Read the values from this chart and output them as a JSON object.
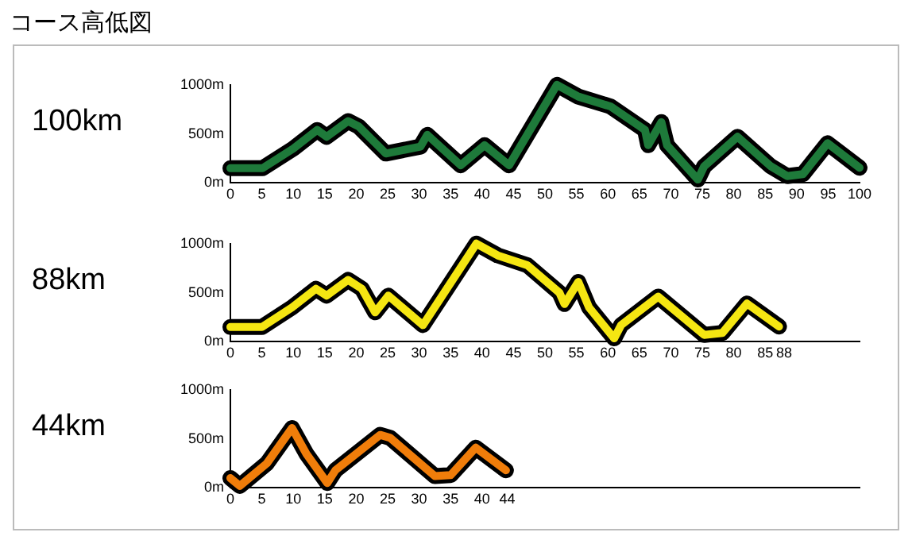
{
  "chart_data": [
    {
      "type": "line",
      "title": "コース高低図",
      "ylabel": "100km",
      "color": "#1e7a3a",
      "marker": "none",
      "grid": false,
      "x": [
        0,
        5.1,
        10,
        13.8,
        15.3,
        18.7,
        20.4,
        24.7,
        30.2,
        31.3,
        36.6,
        40.4,
        44.3,
        51.9,
        55.3,
        60.4,
        65.9,
        66.4,
        68.5,
        69.4,
        74.3,
        75.3,
        80.6,
        85.9,
        88.5,
        91,
        94.9,
        100
      ],
      "values": [
        150,
        150,
        350,
        540,
        470,
        630,
        575,
        300,
        370,
        490,
        180,
        385,
        180,
        1000,
        880,
        780,
        540,
        385,
        620,
        385,
        35,
        170,
        470,
        170,
        70,
        90,
        405,
        155
      ],
      "xlim": [
        0,
        100
      ],
      "xticks": [
        0,
        5,
        10,
        15,
        20,
        25,
        30,
        35,
        40,
        45,
        50,
        55,
        60,
        65,
        70,
        75,
        80,
        85,
        90,
        95,
        100
      ],
      "ylim": [
        0,
        1000
      ],
      "yticks": [
        {
          "value": 0,
          "label": "0m"
        },
        {
          "value": 500,
          "label": "500m"
        },
        {
          "value": 1000,
          "label": "1000m"
        }
      ]
    },
    {
      "type": "line",
      "ylabel": "88km",
      "color": "#f5e612",
      "marker": "none",
      "grid": false,
      "x": [
        0,
        5,
        9.8,
        13.6,
        15.3,
        18.7,
        20.9,
        23,
        25.1,
        30.6,
        39.1,
        42.5,
        47.2,
        52.3,
        53.1,
        55.3,
        57,
        61,
        62.1,
        68,
        75.3,
        78.2,
        82.1,
        87.2
      ],
      "values": [
        150,
        150,
        350,
        540,
        470,
        630,
        540,
        300,
        470,
        170,
        1000,
        880,
        780,
        500,
        385,
        610,
        350,
        35,
        170,
        460,
        70,
        90,
        390,
        155
      ],
      "xlim": [
        0,
        100
      ],
      "xticks": [
        0,
        5,
        10,
        15,
        20,
        25,
        30,
        35,
        40,
        45,
        50,
        55,
        60,
        65,
        70,
        75,
        80,
        85,
        88
      ],
      "ylim": [
        0,
        1000
      ],
      "yticks": [
        {
          "value": 0,
          "label": "0m"
        },
        {
          "value": 500,
          "label": "500m"
        },
        {
          "value": 1000,
          "label": "1000m"
        }
      ]
    },
    {
      "type": "line",
      "ylabel": "44km",
      "color": "#f07d0a",
      "marker": "none",
      "grid": false,
      "x": [
        0,
        1.5,
        5.8,
        9.8,
        12.1,
        15.4,
        16.7,
        23.8,
        25.4,
        32.5,
        35,
        39,
        43.8
      ],
      "values": [
        100,
        20,
        250,
        610,
        345,
        50,
        180,
        540,
        510,
        120,
        130,
        410,
        180
      ],
      "xlim": [
        0,
        100
      ],
      "xticks": [
        0,
        5,
        10,
        15,
        20,
        25,
        30,
        35,
        40,
        44
      ],
      "ylim": [
        0,
        1000
      ],
      "yticks": [
        {
          "value": 0,
          "label": "0m"
        },
        {
          "value": 500,
          "label": "500m"
        },
        {
          "value": 1000,
          "label": "1000m"
        }
      ]
    }
  ]
}
